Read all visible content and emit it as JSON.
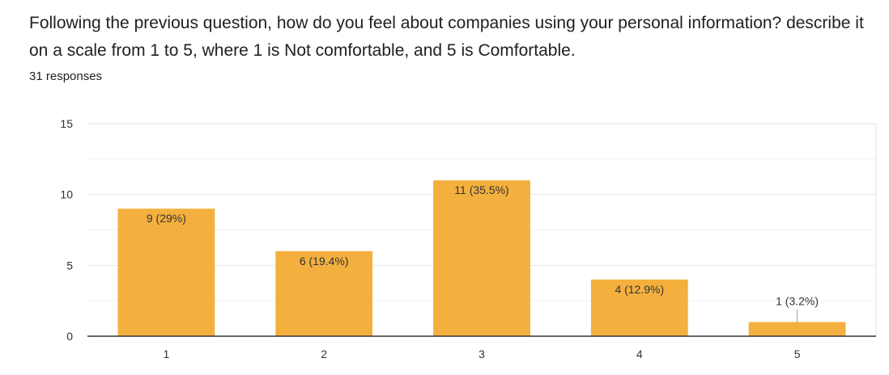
{
  "question": {
    "title": "Following the previous question, how do you feel about companies using your personal information? describe it on a scale from 1 to 5, where 1 is Not comfortable, and 5 is Comfortable.",
    "responses": "31 responses"
  },
  "colors": {
    "bar": "#f4b03e",
    "grid": "#e6e6e6",
    "axis": "#333333",
    "label": "#333333"
  },
  "chart_data": {
    "type": "bar",
    "categories": [
      "1",
      "2",
      "3",
      "4",
      "5"
    ],
    "values": [
      9,
      6,
      11,
      4,
      1
    ],
    "data_labels": [
      "9 (29%)",
      "6 (19.4%)",
      "11 (35.5%)",
      "4 (12.9%)",
      "1 (3.2%)"
    ],
    "yticks": [
      0,
      5,
      10,
      15
    ],
    "ylim": [
      0,
      15
    ],
    "grid": true,
    "title": "",
    "xlabel": "",
    "ylabel": ""
  }
}
